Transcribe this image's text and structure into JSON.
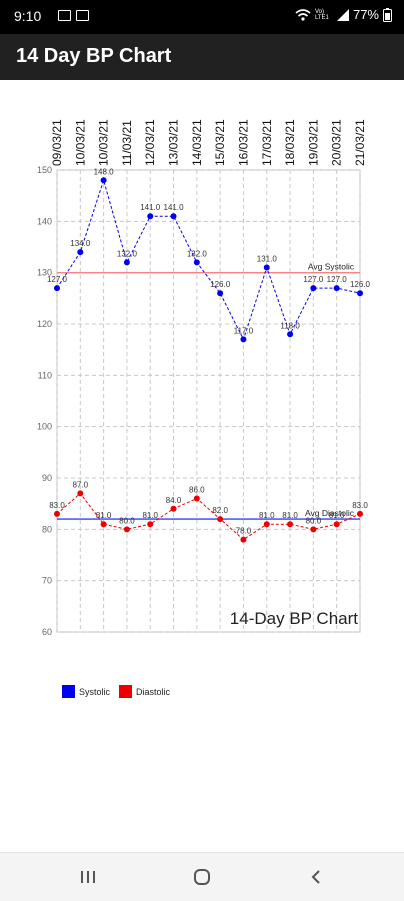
{
  "status_bar": {
    "time": "9:10",
    "battery": "77%",
    "network": "Vo) LTE1"
  },
  "app_bar": {
    "title": "14 Day BP Chart"
  },
  "chart_data": {
    "type": "line",
    "title": "14-Day BP Chart",
    "categories": [
      "09/03/21",
      "10/03/21",
      "10/03/21",
      "11/03/21",
      "12/03/21",
      "13/03/21",
      "14/03/21",
      "15/03/21",
      "16/03/21",
      "17/03/21",
      "18/03/21",
      "19/03/21",
      "20/03/21",
      "21/03/21"
    ],
    "ylim": [
      60,
      150
    ],
    "yticks": [
      60,
      70,
      80,
      90,
      100,
      110,
      120,
      130,
      140,
      150
    ],
    "grid": true,
    "legend": "bottom-left",
    "series": [
      {
        "name": "Systolic",
        "color": "#0000ee",
        "values": [
          127,
          134,
          148,
          132,
          141,
          141,
          132,
          126,
          117,
          131,
          118,
          127,
          127,
          126
        ],
        "labels": [
          "127.0",
          "134.0",
          "148.0",
          "132.0",
          "141.0",
          "141.0",
          "132.0",
          "126.0",
          "117.0",
          "131.0",
          "118.0",
          "127.0",
          "127.0",
          "126.0"
        ]
      },
      {
        "name": "Diastolic",
        "color": "#ee0000",
        "values": [
          83,
          87,
          81,
          80,
          81,
          84,
          86,
          82,
          78,
          81,
          81,
          80,
          81,
          83
        ],
        "labels": [
          "83.0",
          "87.0",
          "81.0",
          "80.0",
          "81.0",
          "84.0",
          "86.0",
          "82.0",
          "78.0",
          "81.0",
          "81.0",
          "80.0",
          "81.0",
          "83.0"
        ]
      }
    ],
    "reference_lines": [
      {
        "label": "Avg Systolic",
        "value": 130,
        "color": "#ff8080"
      },
      {
        "label": "Avg Diastolic",
        "value": 82,
        "color": "#3040ff"
      }
    ]
  }
}
